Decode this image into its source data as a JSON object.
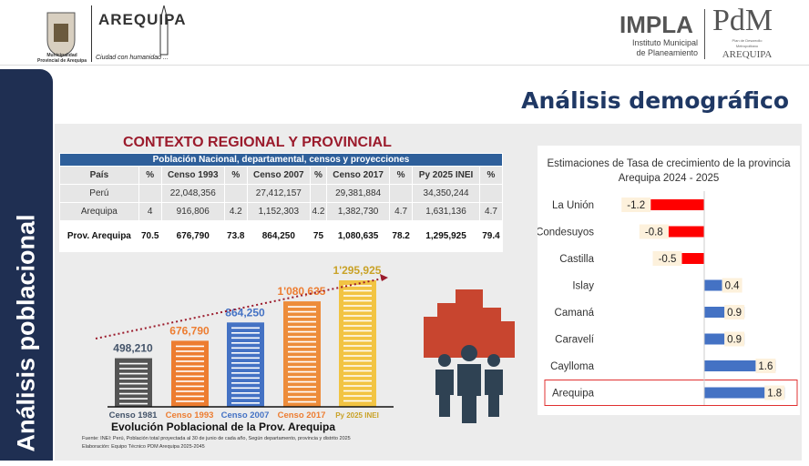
{
  "header": {
    "muni_caption": "Municipalidad Provincial de Arequipa",
    "arequipa_logo": "AREQUIPA",
    "slogan": "Ciudad con humanidad ...",
    "impla": "IMPLA",
    "impla_sub1": "Instituto Municipal",
    "impla_sub2": "de Planeamiento",
    "pdm": "PdM",
    "pdm_sub1": "Plan de Desarrollo",
    "pdm_sub2": "Metropolitano",
    "pdm_city": "AREQUIPA"
  },
  "sidebar": {
    "label": "Análisis poblacional"
  },
  "page_title": "Análisis demográfico",
  "context_title": "CONTEXTO REGIONAL Y PROVINCIAL",
  "table": {
    "caption": "Población Nacional, departamental, censos y proyecciones",
    "headers": [
      "País",
      "%",
      "Censo 1993",
      "%",
      "Censo 2007",
      "%",
      "Censo 2017",
      "%",
      "Py 2025 INEI",
      "%"
    ],
    "rows": [
      [
        "Perú",
        "",
        "22,048,356",
        "",
        "27,412,157",
        "",
        "29,381,884",
        "",
        "34,350,244",
        ""
      ],
      [
        "Arequipa",
        "4",
        "916,806",
        "4.2",
        "1,152,303",
        "4.2",
        "1,382,730",
        "4.7",
        "1,631,136",
        "4.7"
      ],
      [
        "Prov. Arequipa",
        "70.5",
        "676,790",
        "73.8",
        "864,250",
        "75",
        "1,080,635",
        "78.2",
        "1,295,925",
        "79.4"
      ]
    ]
  },
  "chart_data": [
    {
      "type": "bar",
      "title": "Evolución Poblacional de la Prov. Arequipa",
      "categories": [
        "Censo 1981",
        "Censo 1993",
        "Censo 2007",
        "Censo 2017",
        "Py 2025 INEI"
      ],
      "values": [
        498210,
        676790,
        864250,
        1080635,
        1295925
      ],
      "labels": [
        "498,210",
        "676,790",
        "864,250",
        "1'080,635",
        "1'295,925"
      ],
      "colors": [
        "#555555",
        "#ed7d31",
        "#4472c4",
        "#ed8c3a",
        "#f2c443"
      ],
      "label_colors": [
        "#44546a",
        "#ed7d31",
        "#4472c4",
        "#ed7d31",
        "#c9a227"
      ],
      "source": "Fuente: INEI: Perú, Población total proyectada al 30 de junio de cada año, Según departamento, provincia y distrito 2025",
      "credit": "Elaboración: Equipo Técnico PDM Arequipa 2025-2045"
    },
    {
      "type": "bar",
      "orientation": "horizontal",
      "title": "Estimaciones de Tasa de crecimiento de la provincia Arequipa  2024  - 2025",
      "categories": [
        "La Unión",
        "Condesuyos",
        "Castilla",
        "Islay",
        "Camaná",
        "Caravelí",
        "Caylloma",
        "Arequipa"
      ],
      "values": [
        -1.2,
        -0.8,
        -0.5,
        0.4,
        0.9,
        0.9,
        1.6,
        1.8
      ],
      "labels": [
        "-1.2",
        "-0.8",
        "-0.5",
        "0.4",
        "0.9",
        "0.9",
        "1.6",
        "1.8"
      ],
      "highlight": "Arequipa",
      "negative_color": "#ff0000",
      "positive_color": "#4472c4"
    }
  ]
}
